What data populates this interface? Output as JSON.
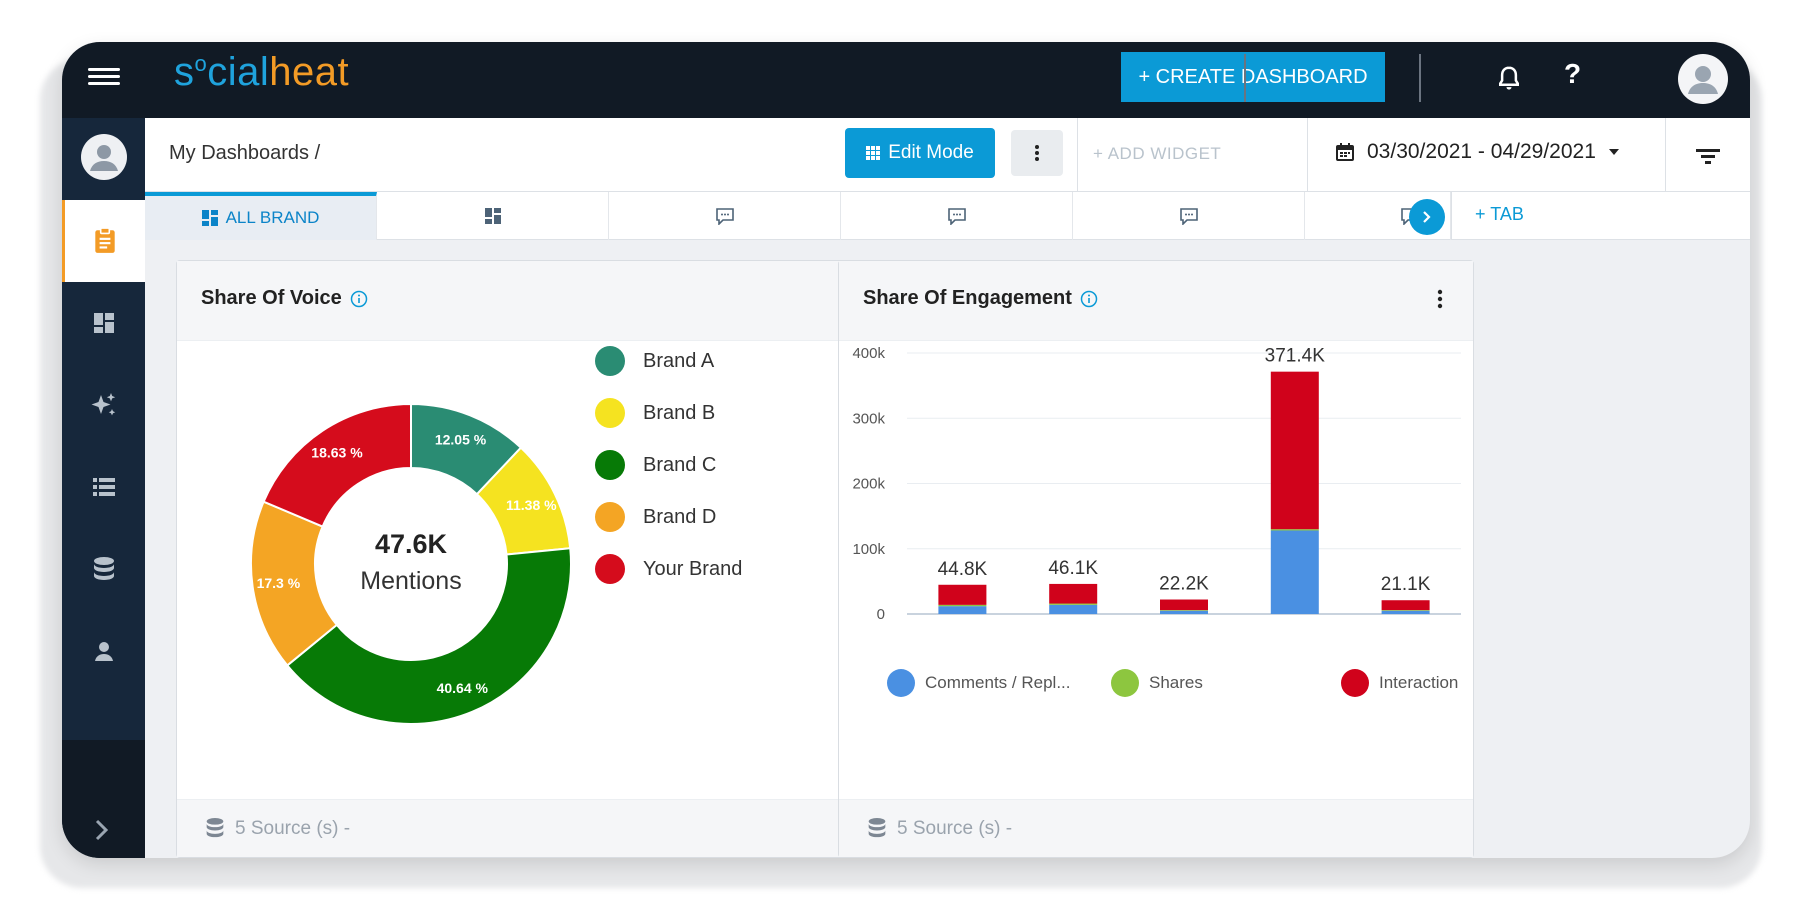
{
  "app": {
    "brand_part1": "s",
    "brand_o": "o",
    "brand_part2": "cial",
    "brand_part3": "heat"
  },
  "topbar": {
    "create_label": "+ CREATE DASHBOARD",
    "help_label": "?"
  },
  "header": {
    "breadcrumb": "My Dashboards /",
    "edit_mode_label": "Edit Mode",
    "add_widget_label": "+ ADD WIDGET",
    "date_range": "03/30/2021 - 04/29/2021"
  },
  "tabs": {
    "active_label": "ALL BRAND",
    "add_tab_label": "+ TAB"
  },
  "colors": {
    "brand_a": "#2a8c73",
    "brand_b": "#f5e320",
    "brand_c": "#077a06",
    "brand_d": "#f4a524",
    "your_brand": "#d50c1c",
    "comments": "#4a90e2",
    "shares": "#8dc63f",
    "interaction": "#d0021b",
    "accent": "#0b9ad6"
  },
  "sov": {
    "title": "Share Of Voice",
    "center_value": "47.6K",
    "center_label": "Mentions",
    "footer": "5 Source (s) -"
  },
  "soe": {
    "title": "Share Of Engagement",
    "footer": "5 Source (s) -"
  },
  "chart_data": [
    {
      "type": "pie",
      "title": "Share Of Voice",
      "categories": [
        "Brand A",
        "Brand B",
        "Brand C",
        "Brand D",
        "Your Brand"
      ],
      "values": [
        12.05,
        11.38,
        40.64,
        17.3,
        18.63
      ],
      "labels": [
        "12.05 %",
        "11.38 %",
        "40.64 %",
        "17.3 %",
        "18.63 %"
      ],
      "colors": [
        "#2a8c73",
        "#f5e320",
        "#077a06",
        "#f4a524",
        "#d50c1c"
      ],
      "center_value": "47.6K",
      "center_label": "Mentions",
      "legend": "right"
    },
    {
      "type": "bar",
      "title": "Share Of Engagement",
      "stacked": true,
      "ylim": [
        0,
        400000
      ],
      "yticks": [
        0,
        100000,
        200000,
        300000,
        400000
      ],
      "ytick_labels": [
        "0",
        "100k",
        "200k",
        "300k",
        "400k"
      ],
      "totals": [
        44800,
        46100,
        22200,
        371400,
        21100
      ],
      "total_labels": [
        "44.8K",
        "46.1K",
        "22.2K",
        "371.4K",
        "21.1K"
      ],
      "series": [
        {
          "name": "Comments / Repl...",
          "color": "#4a90e2",
          "values": [
            12000,
            14000,
            5000,
            128000,
            5000
          ]
        },
        {
          "name": "Shares",
          "color": "#8dc63f",
          "values": [
            2000,
            2000,
            1000,
            2000,
            1000
          ]
        },
        {
          "name": "Interaction",
          "color": "#d0021b",
          "values": [
            30800,
            30100,
            16200,
            241400,
            15100
          ]
        }
      ],
      "legend": "bottom",
      "grid": true
    }
  ]
}
